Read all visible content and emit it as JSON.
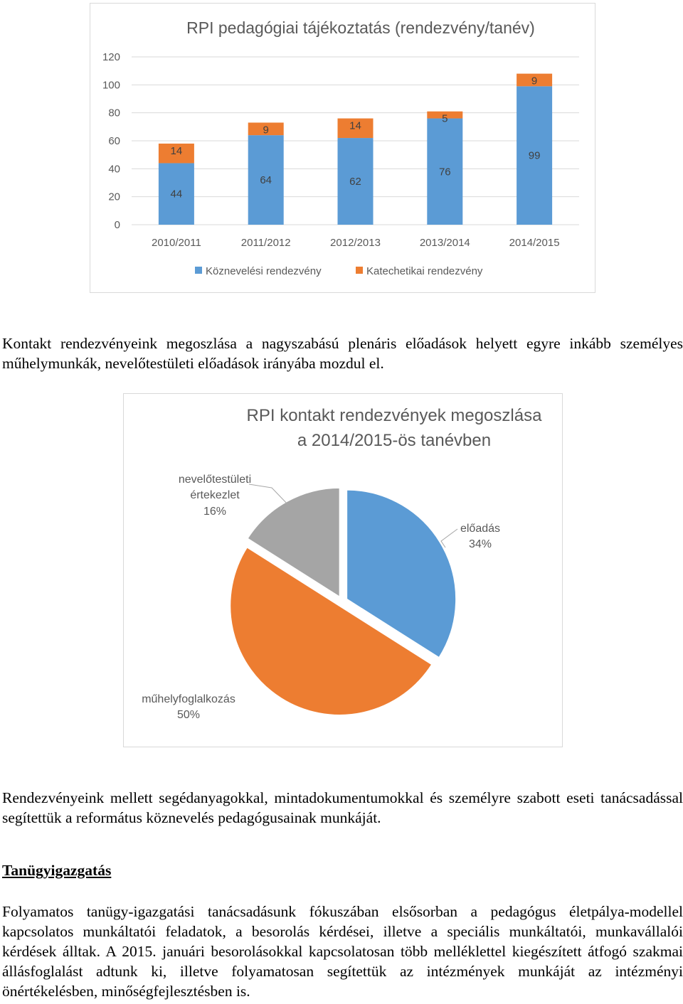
{
  "chart_data": [
    {
      "type": "bar",
      "stacked": true,
      "title": "RPI pedagógiai tájékoztatás (rendezvény/tanév)",
      "categories": [
        "2010/2011",
        "2011/2012",
        "2012/2013",
        "2013/2014",
        "2014/2015"
      ],
      "series": [
        {
          "name": "Köznevelési rendezvény",
          "values": [
            44,
            64,
            62,
            76,
            99
          ],
          "color": "#5b9bd5"
        },
        {
          "name": "Katechetikai rendezvény",
          "values": [
            14,
            9,
            14,
            5,
            9
          ],
          "color": "#ed7d31"
        }
      ],
      "yticks": [
        "0",
        "20",
        "40",
        "60",
        "80",
        "100",
        "120"
      ],
      "ylim": [
        0,
        120
      ],
      "grid": true,
      "legend": "bottom"
    },
    {
      "type": "pie",
      "title": [
        "RPI kontakt rendezvények megoszlása",
        "a  2014/2015-ös tanévben"
      ],
      "slices": [
        {
          "label": "előadás",
          "percent": "34%",
          "value": 34,
          "color": "#5b9bd5"
        },
        {
          "label": "műhelyfoglalkozás",
          "percent": "50%",
          "value": 50,
          "color": "#ed7d31"
        },
        {
          "label": [
            "nevelőtestületi",
            "értekezlet"
          ],
          "percent": "16%",
          "value": 16,
          "color": "#a5a5a5"
        }
      ]
    }
  ],
  "paragraphs": {
    "p1": "Kontakt rendezvényeink megoszlása a nagyszabású plenáris előadások helyett egyre inkább személyes műhelymunkák, nevelőtestületi előadások irányába mozdul el.",
    "p2": "Rendezvényeink mellett segédanyagokkal, mintadokumentumokkal és személyre szabott eseti tanácsadással segítettük a református köznevelés pedagógusainak munkáját.",
    "heading": "Tanügyigazgatás",
    "p3": "Folyamatos tanügy-igazgatási tanácsadásunk fókuszában elsősorban a pedagógus életpálya-modellel kapcsolatos munkáltatói feladatok, a besorolás kérdései, illetve a speciális munkáltatói, munkavállalói kérdések álltak. A 2015. januári besorolásokkal kapcsolatosan több melléklettel kiegészített átfogó szakmai állásfoglalást adtunk ki, illetve folyamatosan segítettük az intézmények munkáját az intézményi önértékelésben, minőségfejlesztésben is."
  }
}
